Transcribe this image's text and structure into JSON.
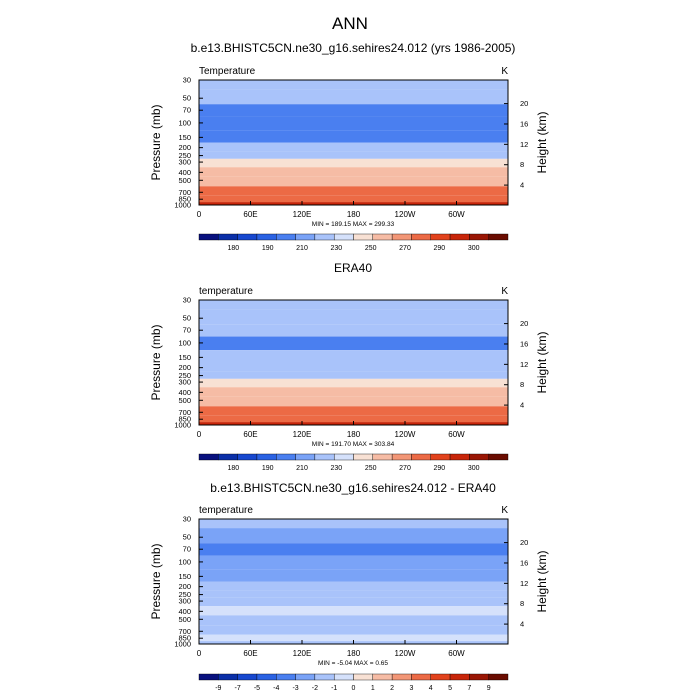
{
  "figure": {
    "title": "ANN"
  },
  "chart_data": [
    {
      "type": "heatmap",
      "title": "b.e13.BHISTC5CN.ne30_g16.sehires24.012 (yrs 1986-2005)",
      "variable": "Temperature",
      "units": "K",
      "ylabel": "Pressure (mb)",
      "ylabel_right": "Height (km)",
      "x_ticks": [
        "0",
        "60E",
        "120E",
        "180",
        "120W",
        "60W"
      ],
      "y_ticks": [
        "30",
        "50",
        "70",
        "100",
        "150",
        "200",
        "250",
        "300",
        "400",
        "500",
        "700",
        "850",
        "1000"
      ],
      "y_ticks_right": [
        "20",
        "16",
        "12",
        "8",
        "4"
      ],
      "minmax": "MIN = 189.15   MAX = 299.33",
      "colorbar": {
        "labels": [
          "180",
          "190",
          "210",
          "230",
          "250",
          "270",
          "290",
          "300"
        ],
        "colors": [
          "#08107e",
          "#0a2fa8",
          "#1748cf",
          "#2a62e3",
          "#4a7ff0",
          "#7aa3f7",
          "#a9c3fa",
          "#d5e1fb",
          "#f8e1d4",
          "#f6bca5",
          "#f29676",
          "#ec6a45",
          "#e2421c",
          "#c82509",
          "#9a1604",
          "#6a0c01"
        ]
      },
      "layers": [
        {
          "pressure": 30,
          "value": 215
        },
        {
          "pressure": 50,
          "value": 214
        },
        {
          "pressure": 70,
          "value": 207
        },
        {
          "pressure": 100,
          "value": 200
        },
        {
          "pressure": 150,
          "value": 208
        },
        {
          "pressure": 200,
          "value": 218
        },
        {
          "pressure": 250,
          "value": 226
        },
        {
          "pressure": 300,
          "value": 238
        },
        {
          "pressure": 400,
          "value": 253
        },
        {
          "pressure": 500,
          "value": 263
        },
        {
          "pressure": 700,
          "value": 277
        },
        {
          "pressure": 850,
          "value": 286
        },
        {
          "pressure": 1000,
          "value": 296
        }
      ]
    },
    {
      "type": "heatmap",
      "title": "ERA40",
      "variable": "temperature",
      "units": "K",
      "ylabel": "Pressure (mb)",
      "ylabel_right": "Height (km)",
      "x_ticks": [
        "0",
        "60E",
        "120E",
        "180",
        "120W",
        "60W"
      ],
      "y_ticks": [
        "30",
        "50",
        "70",
        "100",
        "150",
        "200",
        "250",
        "300",
        "400",
        "500",
        "700",
        "850",
        "1000"
      ],
      "y_ticks_right": [
        "20",
        "16",
        "12",
        "8",
        "4"
      ],
      "minmax": "MIN = 191.70   MAX = 303.84",
      "colorbar": {
        "labels": [
          "180",
          "190",
          "210",
          "230",
          "250",
          "270",
          "290",
          "300"
        ],
        "colors": [
          "#08107e",
          "#0a2fa8",
          "#1748cf",
          "#2a62e3",
          "#4a7ff0",
          "#7aa3f7",
          "#a9c3fa",
          "#d5e1fb",
          "#f8e1d4",
          "#f6bca5",
          "#f29676",
          "#ec6a45",
          "#e2421c",
          "#c82509",
          "#9a1604",
          "#6a0c01"
        ]
      },
      "layers": [
        {
          "pressure": 30,
          "value": 216
        },
        {
          "pressure": 50,
          "value": 215
        },
        {
          "pressure": 70,
          "value": 210
        },
        {
          "pressure": 100,
          "value": 204
        },
        {
          "pressure": 150,
          "value": 210
        },
        {
          "pressure": 200,
          "value": 219
        },
        {
          "pressure": 250,
          "value": 227
        },
        {
          "pressure": 300,
          "value": 239
        },
        {
          "pressure": 400,
          "value": 254
        },
        {
          "pressure": 500,
          "value": 264
        },
        {
          "pressure": 700,
          "value": 278
        },
        {
          "pressure": 850,
          "value": 288
        },
        {
          "pressure": 1000,
          "value": 298
        }
      ]
    },
    {
      "type": "heatmap",
      "title": "b.e13.BHISTC5CN.ne30_g16.sehires24.012 - ERA40",
      "variable": "temperature",
      "units": "K",
      "ylabel": "Pressure (mb)",
      "ylabel_right": "Height (km)",
      "x_ticks": [
        "0",
        "60E",
        "120E",
        "180",
        "120W",
        "60W"
      ],
      "y_ticks": [
        "30",
        "50",
        "70",
        "100",
        "150",
        "200",
        "250",
        "300",
        "400",
        "500",
        "700",
        "850",
        "1000"
      ],
      "y_ticks_right": [
        "20",
        "16",
        "12",
        "8",
        "4"
      ],
      "minmax": "MIN =  -5.04   MAX =   0.65",
      "colorbar": {
        "labels": [
          "-9",
          "-7",
          "-5",
          "-4",
          "-3",
          "-2",
          "-1",
          "0",
          "1",
          "2",
          "3",
          "4",
          "5",
          "7",
          "9"
        ],
        "colors": [
          "#08107e",
          "#0a2fa8",
          "#1748cf",
          "#2a62e3",
          "#4a7ff0",
          "#7aa3f7",
          "#a9c3fa",
          "#d5e1fb",
          "#f8e1d4",
          "#f6bca5",
          "#f29676",
          "#ec6a45",
          "#e2421c",
          "#c82509",
          "#9a1604",
          "#6a0c01"
        ]
      },
      "layers": [
        {
          "pressure": 30,
          "value": -1.5
        },
        {
          "pressure": 50,
          "value": -2.5
        },
        {
          "pressure": 70,
          "value": -3.5
        },
        {
          "pressure": 100,
          "value": -2.5
        },
        {
          "pressure": 150,
          "value": -2.5
        },
        {
          "pressure": 200,
          "value": -1.5
        },
        {
          "pressure": 250,
          "value": -1.5
        },
        {
          "pressure": 300,
          "value": -1.5
        },
        {
          "pressure": 400,
          "value": -0.5
        },
        {
          "pressure": 500,
          "value": -1.5
        },
        {
          "pressure": 700,
          "value": -1.5
        },
        {
          "pressure": 850,
          "value": -0.5
        },
        {
          "pressure": 1000,
          "value": -1.5
        }
      ]
    }
  ]
}
